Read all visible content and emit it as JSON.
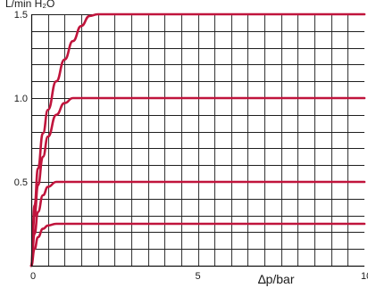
{
  "chart_data": {
    "type": "line",
    "title": "",
    "ylabel": "L/min H₂O",
    "xlabel": "∆p/bar",
    "xlim": [
      0,
      10
    ],
    "ylim": [
      0,
      1.5
    ],
    "x_ticks": [
      {
        "value": 0,
        "label": "0"
      },
      {
        "value": 5,
        "label": "5"
      },
      {
        "value": 10,
        "label": "10"
      }
    ],
    "y_ticks": [
      {
        "value": 0.5,
        "label": "0.5"
      },
      {
        "value": 1.0,
        "label": "1.0"
      },
      {
        "value": 1.5,
        "label": "1.5"
      }
    ],
    "grid": true,
    "grid_major": {
      "x": 0.5,
      "y": 0.1
    },
    "line_color": "#c0143c",
    "x": [
      0,
      0.1,
      0.2,
      0.35,
      0.5,
      0.75,
      1.0,
      1.25,
      1.5,
      1.75,
      2.0,
      2.5,
      3,
      4,
      5,
      6,
      7,
      8,
      9,
      10
    ],
    "series": [
      {
        "values": [
          0,
          0.36,
          0.58,
          0.79,
          0.93,
          1.1,
          1.23,
          1.34,
          1.43,
          1.49,
          1.5,
          1.5,
          1.5,
          1.5,
          1.5,
          1.5,
          1.5,
          1.5,
          1.5,
          1.5
        ]
      },
      {
        "values": [
          0,
          0.3,
          0.48,
          0.65,
          0.77,
          0.9,
          0.97,
          1.0,
          1.0,
          1.0,
          1.0,
          1.0,
          1.0,
          1.0,
          1.0,
          1.0,
          1.0,
          1.0,
          1.0,
          1.0
        ]
      },
      {
        "values": [
          0,
          0.19,
          0.32,
          0.42,
          0.47,
          0.5,
          0.5,
          0.5,
          0.5,
          0.5,
          0.5,
          0.5,
          0.5,
          0.5,
          0.5,
          0.5,
          0.5,
          0.5,
          0.5,
          0.5
        ]
      },
      {
        "values": [
          0,
          0.1,
          0.17,
          0.22,
          0.24,
          0.25,
          0.25,
          0.25,
          0.25,
          0.25,
          0.25,
          0.25,
          0.25,
          0.25,
          0.25,
          0.25,
          0.25,
          0.25,
          0.25,
          0.25
        ]
      }
    ]
  }
}
